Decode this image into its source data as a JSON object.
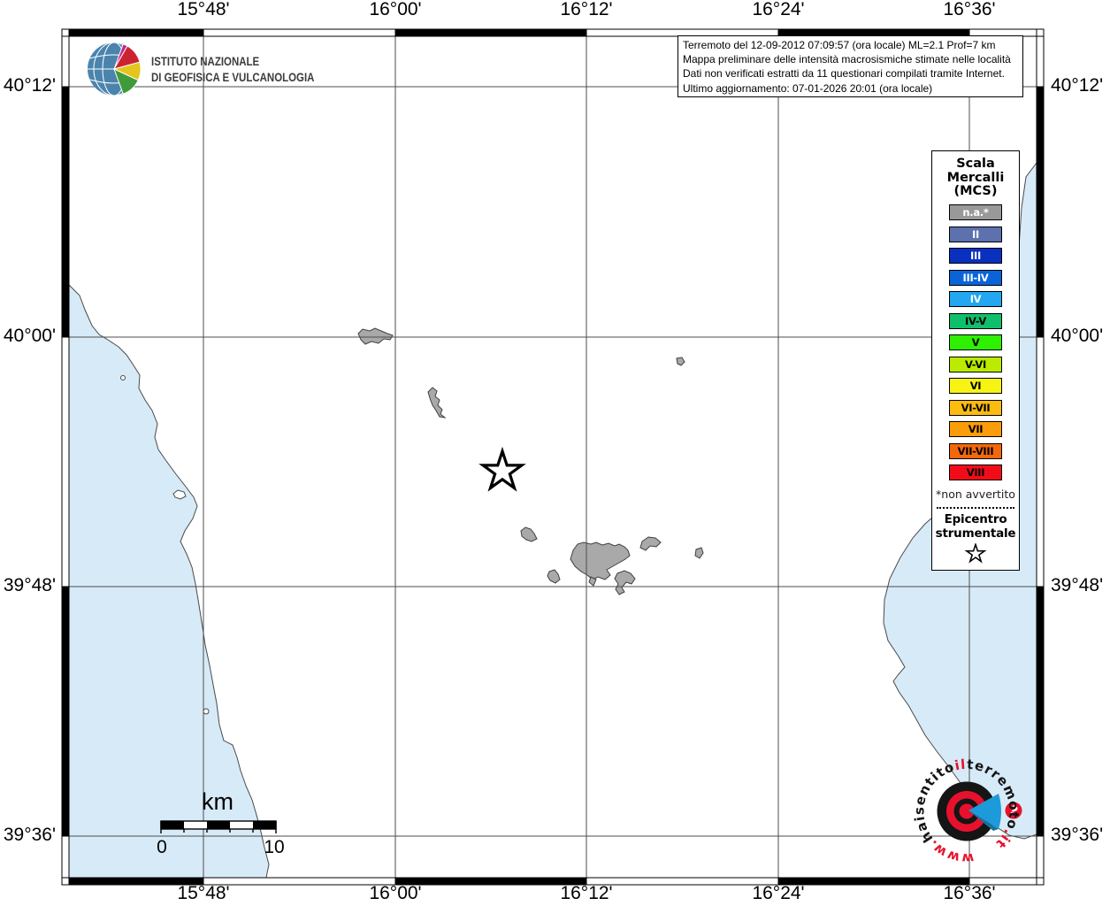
{
  "header": {
    "ingv": {
      "line1": "ISTITUTO NAZIONALE",
      "line2": "DI GEOFISICA E VULCANOLOGIA"
    },
    "info_box": {
      "line1": "Terremoto del 12-09-2012 07:09:57 (ora locale) ML=2.1 Prof=7 km",
      "line2": "Mappa preliminare delle intensità macrosismiche stimate nelle località",
      "line3": "Dati non verificati estratti da 11 questionari compilati tramite Internet.",
      "line4": "Ultimo aggiornamento: 07-01-2026 20:01 (ora locale)"
    }
  },
  "axes": {
    "x_labels": [
      "15°48'",
      "16°00'",
      "16°12'",
      "16°24'",
      "16°36'"
    ],
    "y_labels": [
      "40°12'",
      "40°00'",
      "39°48'",
      "39°36'"
    ]
  },
  "legend": {
    "title_lines": [
      "Scala",
      "Mercalli",
      "(MCS)"
    ],
    "levels": [
      {
        "label": "n.a.*",
        "color": "#999999",
        "text_color": "#ffffff"
      },
      {
        "label": "II",
        "color": "#5c71ad",
        "text_color": "#ffffff"
      },
      {
        "label": "III",
        "color": "#0a30c0",
        "text_color": "#ffffff"
      },
      {
        "label": "III-IV",
        "color": "#0a64d8",
        "text_color": "#ffffff"
      },
      {
        "label": "IV",
        "color": "#22a7f0",
        "text_color": "#ffffff"
      },
      {
        "label": "IV-V",
        "color": "#10bf6b",
        "text_color": "#000000"
      },
      {
        "label": "V",
        "color": "#2ef000",
        "text_color": "#000000"
      },
      {
        "label": "V-VI",
        "color": "#bbeb00",
        "text_color": "#000000"
      },
      {
        "label": "VI",
        "color": "#f7f414",
        "text_color": "#000000"
      },
      {
        "label": "VI-VII",
        "color": "#fbbb0f",
        "text_color": "#000000"
      },
      {
        "label": "VII",
        "color": "#fb9d0a",
        "text_color": "#000000"
      },
      {
        "label": "VII-VIII",
        "color": "#f2680d",
        "text_color": "#000000"
      },
      {
        "label": "VIII",
        "color": "#f20c19",
        "text_color": "#000000"
      }
    ],
    "footnote": "*non avvertito",
    "epicenter_lines": [
      "Epicentro",
      "strumentale"
    ]
  },
  "scale_bar": {
    "unit": "km",
    "start": "0",
    "end": "10"
  },
  "branding": {
    "site_segments": [
      {
        "text": "www.",
        "color": "#e8112d"
      },
      {
        "text": "haisentito",
        "color": "#141414"
      },
      {
        "text": "il",
        "color": "#e8112d"
      },
      {
        "text": "terremoto",
        "color": "#141414"
      },
      {
        "text": ".it",
        "color": "#e8112d"
      }
    ],
    "question_mark": "?"
  },
  "map": {
    "sea_color": "#d7eaf7",
    "land_color": "#ffffff",
    "locality_color": "#a9a9a9",
    "brand_red": "#e8112d",
    "brand_blue": "#1d9ad9"
  }
}
